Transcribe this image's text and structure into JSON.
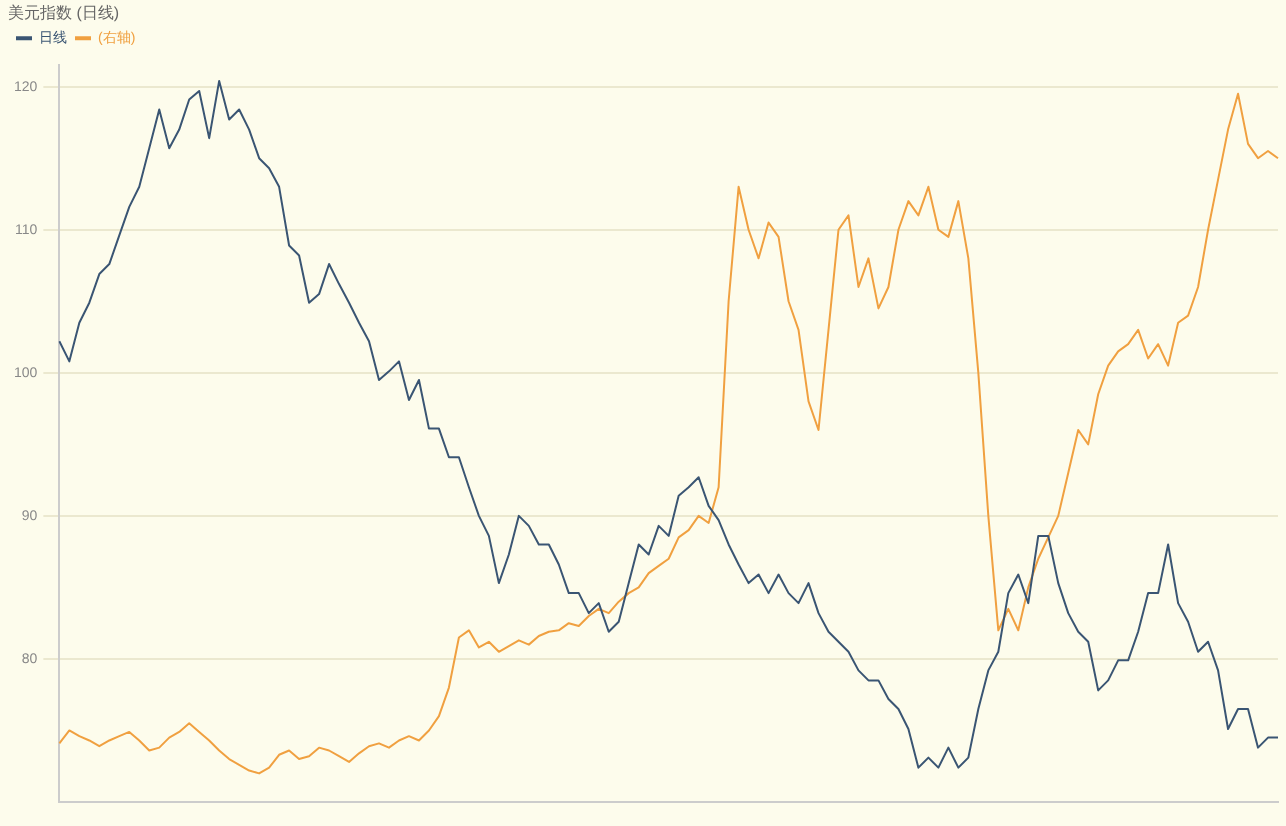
{
  "chart_data": {
    "type": "line",
    "title": "美元指数 (日线)",
    "categories": [
      null,
      null,
      null,
      null,
      null,
      null,
      null,
      null,
      null,
      null,
      null,
      null,
      null,
      null,
      null,
      null,
      null,
      null,
      null,
      null,
      null,
      null,
      null,
      null,
      null,
      null,
      null,
      null,
      null,
      null,
      null,
      null,
      null,
      null,
      null,
      null,
      null,
      null,
      null,
      null,
      null,
      null,
      null,
      null,
      null,
      null,
      null,
      null,
      null,
      null,
      null,
      null,
      null,
      null,
      null,
      null,
      null,
      null,
      null,
      null,
      null,
      null,
      null,
      null,
      null,
      null,
      null,
      null,
      null,
      null,
      null,
      null,
      null,
      null,
      null,
      null,
      null,
      null,
      null,
      null,
      null,
      null,
      null,
      null,
      null,
      null,
      null,
      null,
      null,
      null,
      null,
      null,
      null,
      null,
      null,
      null,
      null,
      null,
      null,
      null,
      null,
      null,
      null,
      null,
      null,
      null,
      null,
      null,
      null,
      null,
      null,
      null,
      null,
      null,
      null,
      null,
      null,
      null,
      null,
      null,
      null,
      null,
      null
    ],
    "series": [
      {
        "name": "日线",
        "color": "#3a5573",
        "values": [
          102.2,
          100.8,
          103.5,
          104.9,
          106.9,
          107.6,
          109.6,
          111.6,
          113.0,
          115.7,
          118.4,
          115.7,
          117.0,
          119.1,
          119.7,
          116.4,
          120.4,
          117.7,
          118.4,
          117.0,
          115.0,
          114.3,
          113.0,
          108.9,
          108.2,
          104.9,
          105.5,
          107.6,
          106.2,
          104.9,
          103.5,
          102.2,
          99.5,
          100.1,
          100.8,
          98.1,
          99.5,
          96.1,
          96.1,
          94.1,
          94.1,
          92.0,
          90.0,
          88.6,
          85.3,
          87.3,
          90.0,
          89.3,
          88.0,
          88.0,
          86.6,
          84.6,
          84.6,
          83.2,
          83.9,
          81.9,
          82.6,
          85.3,
          88.0,
          87.3,
          89.3,
          88.6,
          91.4,
          92.0,
          92.7,
          90.7,
          89.7,
          88.0,
          86.6,
          85.3,
          85.9,
          84.6,
          85.9,
          84.6,
          83.9,
          85.3,
          83.2,
          81.9,
          81.2,
          80.5,
          79.2,
          78.5,
          78.5,
          77.2,
          76.5,
          75.1,
          72.4,
          73.1,
          72.4,
          73.8,
          72.4,
          73.1,
          76.5,
          79.2,
          80.5,
          84.6,
          85.9,
          83.9,
          88.6,
          88.6,
          85.3,
          83.2,
          81.9,
          81.2,
          77.8,
          78.5,
          79.9,
          79.9,
          81.9,
          84.6,
          84.6,
          88.0,
          83.9,
          82.6,
          80.5,
          81.2,
          79.2,
          75.1,
          76.5,
          76.5,
          73.8,
          74.5,
          74.5
        ]
      },
      {
        "name": "(右轴)",
        "color": "#f0a040",
        "values": [
          74.1,
          75.0,
          74.6,
          74.3,
          73.9,
          74.3,
          74.6,
          74.9,
          74.3,
          73.6,
          73.8,
          74.5,
          74.9,
          75.5,
          74.9,
          74.3,
          73.6,
          73.0,
          72.6,
          72.2,
          72.0,
          72.4,
          73.3,
          73.6,
          73.0,
          73.2,
          73.8,
          73.6,
          73.2,
          72.8,
          73.4,
          73.9,
          74.1,
          73.8,
          74.3,
          74.6,
          74.3,
          75.0,
          76.0,
          78.0,
          81.5,
          82.0,
          80.8,
          81.2,
          80.5,
          80.9,
          81.3,
          81.0,
          81.6,
          81.9,
          82.0,
          82.5,
          82.3,
          83.0,
          83.5,
          83.2,
          84.0,
          84.6,
          85.0,
          86.0,
          86.5,
          87.0,
          88.5,
          89.0,
          90.0,
          89.5,
          92.0,
          105.0,
          113.0,
          110.0,
          108.0,
          110.5,
          109.5,
          105.0,
          103.0,
          98.0,
          96.0,
          103.0,
          110.0,
          111.0,
          106.0,
          108.0,
          104.5,
          106.0,
          110.0,
          112.0,
          111.0,
          113.0,
          110.0,
          109.5,
          112.0,
          108.0,
          100.0,
          90.0,
          82.0,
          83.5,
          82.0,
          85.0,
          87.0,
          88.5,
          90.0,
          93.0,
          96.0,
          95.0,
          98.5,
          100.5,
          101.5,
          102.0,
          103.0,
          101.0,
          102.0,
          100.5,
          103.5,
          104.0,
          106.0,
          110.0,
          113.5,
          117.0,
          119.5,
          116.0,
          115.0,
          115.5,
          115.0
        ]
      }
    ],
    "ylim": [
      70,
      121.5
    ],
    "yticks": [
      80,
      90,
      100,
      110,
      120
    ],
    "grid": "y",
    "legend": "top left",
    "tick_labels": "y",
    "marker": "none"
  }
}
